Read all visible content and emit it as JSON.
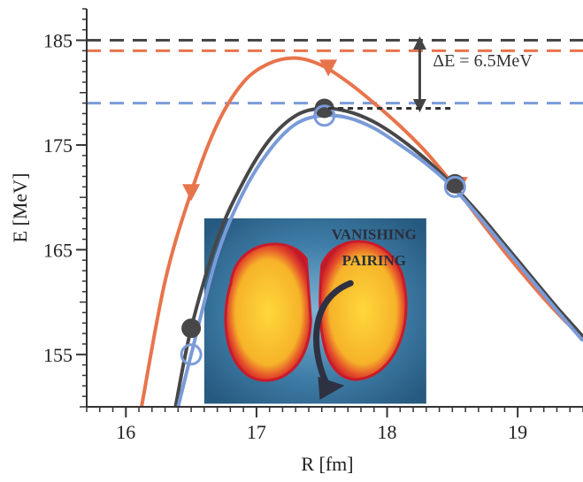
{
  "chart_data": {
    "type": "line",
    "xlabel": "R [fm]",
    "ylabel": "E [MeV]",
    "xlim": [
      15.7,
      19.5
    ],
    "ylim": [
      150,
      188
    ],
    "xticks": [
      16,
      17,
      18,
      19
    ],
    "yticks": [
      155,
      165,
      175,
      185
    ],
    "grid": false,
    "series": [
      {
        "color": "#e8744c",
        "x": [
          16.12,
          16.3,
          16.5,
          16.7,
          16.9,
          17.1,
          17.3,
          17.5,
          17.7,
          17.9,
          18.1,
          18.3,
          18.5,
          18.7,
          18.9,
          19.1,
          19.3,
          19.5
        ],
        "y": [
          150,
          162,
          170.5,
          177,
          181,
          182.8,
          183.3,
          182.6,
          181,
          179,
          176.8,
          174.3,
          171.3,
          168,
          164.8,
          161.8,
          159,
          156.5
        ],
        "marker": "triangle-down",
        "marker_points": [
          [
            16.5,
            170.5
          ],
          [
            17.55,
            182.4
          ],
          [
            18.55,
            171.2
          ]
        ],
        "asymptote": 184
      },
      {
        "color": "#474749",
        "x": [
          16.38,
          16.5,
          16.7,
          16.9,
          17.1,
          17.3,
          17.5,
          17.7,
          17.9,
          18.1,
          18.3,
          18.5,
          18.7,
          18.9,
          19.1,
          19.3,
          19.5
        ],
        "y": [
          150,
          157.5,
          166,
          171.5,
          175.5,
          177.8,
          178.5,
          178.2,
          177.2,
          175.6,
          173.6,
          171.2,
          168.5,
          165.5,
          162.5,
          159.5,
          156.7
        ],
        "marker": "circle-filled",
        "marker_points": [
          [
            16.5,
            157.5
          ],
          [
            17.52,
            178.5
          ],
          [
            18.52,
            171.3
          ]
        ],
        "asymptote": 185
      },
      {
        "color": "#7a9bd8",
        "x": [
          16.4,
          16.5,
          16.7,
          16.9,
          17.1,
          17.3,
          17.5,
          17.7,
          17.9,
          18.1,
          18.3,
          18.5,
          18.7,
          18.9,
          19.1,
          19.3,
          19.5
        ],
        "y": [
          150,
          155,
          164.5,
          170.5,
          174.5,
          177,
          177.8,
          177.6,
          176.6,
          175,
          173.2,
          171,
          168.2,
          165.2,
          162.2,
          159.2,
          156.3
        ],
        "marker": "circle-open",
        "marker_points": [
          [
            16.5,
            155
          ],
          [
            17.52,
            177.8
          ],
          [
            18.52,
            171
          ]
        ],
        "asymptote": 179
      }
    ],
    "annotations": [
      {
        "text": "ΔE = 6.5MeV",
        "arrow_from": 185,
        "arrow_to": 178.5,
        "arrow_x": 18.25,
        "label_x": 18.35,
        "label_y": 182.5
      },
      {
        "text": "VANISHING",
        "x": 17.9,
        "y": 166
      },
      {
        "text": "PAIRING",
        "x": 17.9,
        "y": 163.5
      }
    ],
    "inset": {
      "x0": 16.6,
      "x1": 18.3,
      "y0": 168.0,
      "y1": 150.3
    }
  }
}
